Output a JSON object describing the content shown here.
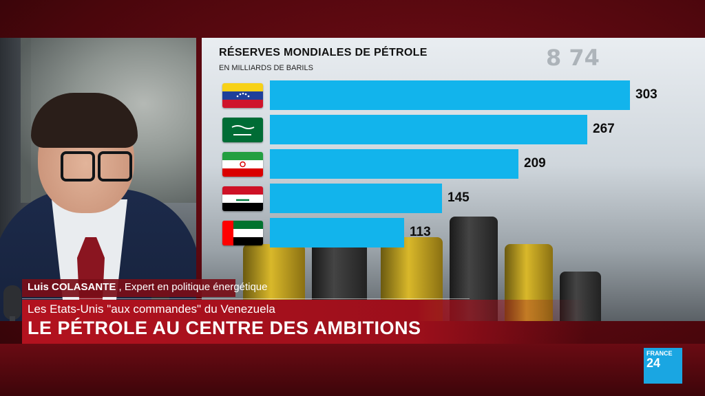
{
  "chart_data": {
    "type": "bar",
    "orientation": "horizontal",
    "title": "RÉSERVES MONDIALES DE PÉTROLE",
    "subtitle": "EN MILLIARDS DE BARILS",
    "categories": [
      "venezuela",
      "saudi-arabia",
      "iran",
      "iraq",
      "uae"
    ],
    "values": [
      303,
      267,
      209,
      145,
      113
    ],
    "value_labels": [
      "303",
      "267",
      "209",
      "145",
      "113"
    ],
    "xlim": [
      0,
      303
    ],
    "bar_color": "#12b4ec",
    "grid": false,
    "legend": "none"
  },
  "lower_third": {
    "name": "Luis COLASANTE",
    "role": " , Expert en politique énergétique",
    "subheadline": "Les Etats-Unis \"aux commandes\" du Venezuela",
    "headline": "LE PÉTROLE AU CENTRE DES AMBITIONS"
  },
  "logo": {
    "line1": "FRANCE",
    "line2": "24"
  },
  "colors": {
    "frame": "#6a0b13",
    "headline_bg": "#b3121f",
    "logo_bg": "#1aa6e2"
  }
}
